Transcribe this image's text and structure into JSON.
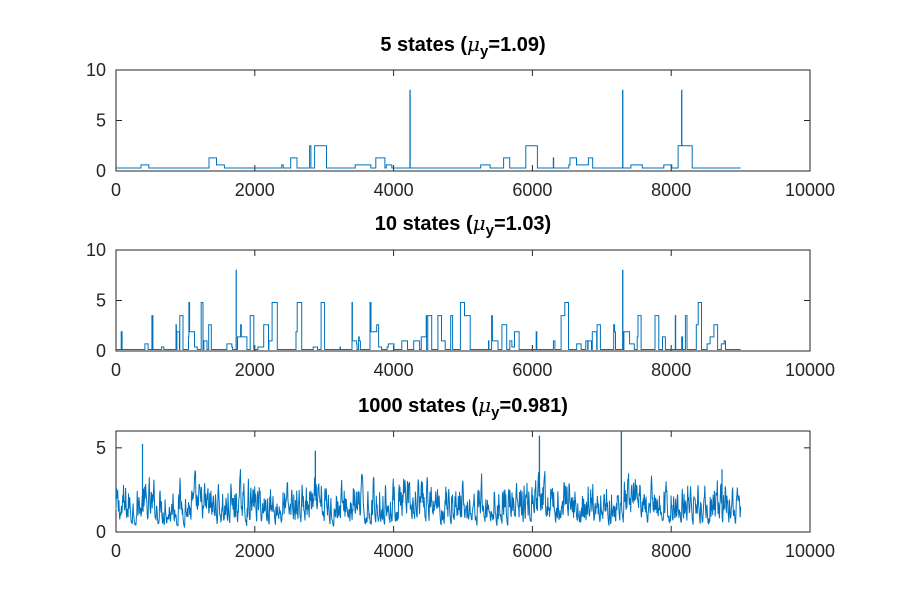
{
  "chart_data": [
    {
      "type": "line",
      "title": {
        "prefix": "5 states (",
        "mu_symbol": "μ",
        "mu_sub": "y",
        "suffix": "=1.09)"
      },
      "xlim": [
        0,
        10000
      ],
      "ylim": [
        0,
        10
      ],
      "xticks": [
        0,
        2000,
        4000,
        6000,
        8000,
        10000
      ],
      "yticks": [
        0,
        5,
        10
      ],
      "line_color": "#0072BD",
      "series": [
        {
          "levels": [
            0.3,
            0.6,
            1.3,
            2.5
          ],
          "x_end": 9000,
          "seed": 5,
          "run_length": 38,
          "spikes": [
            [
              4235,
              8.0
            ],
            [
              7300,
              8.0
            ],
            [
              8150,
              8.0
            ]
          ]
        }
      ]
    },
    {
      "type": "line",
      "title": {
        "prefix": "10 states (",
        "mu_symbol": "μ",
        "mu_sub": "y",
        "suffix": "=1.03)"
      },
      "xlim": [
        0,
        10000
      ],
      "ylim": [
        0,
        10
      ],
      "xticks": [
        0,
        2000,
        4000,
        6000,
        8000,
        10000
      ],
      "yticks": [
        0,
        5,
        10
      ],
      "line_color": "#0072BD",
      "series": [
        {
          "levels": [
            0.15,
            0.4,
            0.7,
            1.0,
            1.4,
            1.9,
            2.6,
            3.5,
            4.8
          ],
          "x_end": 9000,
          "seed": 10,
          "run_length": 14,
          "spikes": [
            [
              1730,
              8.0
            ],
            [
              7300,
              8.0
            ]
          ]
        }
      ]
    },
    {
      "type": "line",
      "title": {
        "prefix": "1000 states (",
        "mu_symbol": "μ",
        "mu_sub": "y",
        "suffix": "=0.981)"
      },
      "xlim": [
        0,
        10000
      ],
      "ylim": [
        0,
        6
      ],
      "xticks": [
        0,
        2000,
        4000,
        6000,
        8000,
        10000
      ],
      "yticks": [
        0,
        5
      ],
      "line_color": "#0072BD",
      "series": [
        {
          "levels": [],
          "x_end": 9000,
          "seed": 1000,
          "run_length": 3,
          "spikes": [
            [
              380,
              5.2
            ],
            [
              2870,
              4.8
            ],
            [
              6100,
              5.7
            ],
            [
              7280,
              6.0
            ],
            [
              8730,
              3.7
            ]
          ]
        }
      ]
    }
  ]
}
